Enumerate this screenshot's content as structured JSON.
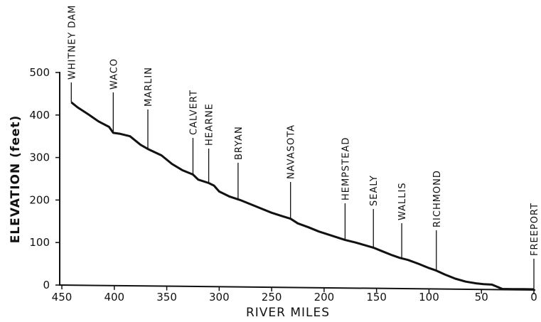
{
  "chart_data": {
    "type": "line",
    "title": "",
    "xlabel": "RIVER MILES",
    "ylabel": "ELEVATION (feet)",
    "xlim": [
      460,
      0
    ],
    "ylim": [
      0,
      500
    ],
    "x_ticks": [
      {
        "value": 450,
        "label": "450"
      },
      {
        "value": 400,
        "label": "400"
      },
      {
        "value": 350,
        "label": "350"
      },
      {
        "value": 300,
        "label": "300"
      },
      {
        "value": 250,
        "label": "250"
      },
      {
        "value": 200,
        "label": "200"
      },
      {
        "value": 150,
        "label": "150"
      },
      {
        "value": 100,
        "label": "100"
      },
      {
        "value": 50,
        "label": "50"
      },
      {
        "value": 0,
        "label": "0"
      }
    ],
    "y_ticks": [
      {
        "value": 0,
        "label": "0"
      },
      {
        "value": 100,
        "label": "100"
      },
      {
        "value": 200,
        "label": "200"
      },
      {
        "value": 300,
        "label": "300"
      },
      {
        "value": 400,
        "label": "400"
      },
      {
        "value": 500,
        "label": "500"
      }
    ],
    "grid": false,
    "series": [
      {
        "x": [
          441,
          435,
          425,
          415,
          405,
          401,
          395,
          385,
          375,
          368,
          355,
          345,
          335,
          325,
          320,
          310,
          305,
          300,
          290,
          280,
          270,
          260,
          250,
          240,
          232,
          225,
          215,
          205,
          195,
          185,
          180,
          170,
          160,
          153,
          145,
          135,
          128,
          120,
          110,
          100,
          93,
          85,
          75,
          65,
          55,
          48,
          40,
          30,
          20,
          10,
          0
        ],
        "y": [
          430,
          418,
          402,
          385,
          372,
          358,
          356,
          350,
          330,
          320,
          305,
          285,
          270,
          260,
          248,
          240,
          234,
          220,
          208,
          200,
          190,
          180,
          170,
          162,
          156,
          145,
          136,
          126,
          118,
          110,
          106,
          100,
          93,
          88,
          80,
          70,
          64,
          59,
          50,
          40,
          34,
          25,
          15,
          8,
          4,
          2,
          1,
          0,
          0,
          0,
          0
        ]
      }
    ],
    "annotations": [
      {
        "label": "WHITNEY DAM",
        "x": 441,
        "y": 430
      },
      {
        "label": "WACO",
        "x": 401,
        "y": 358
      },
      {
        "label": "MARLIN",
        "x": 368,
        "y": 320
      },
      {
        "label": "CALVERT",
        "x": 325,
        "y": 260
      },
      {
        "label": "HEARNE",
        "x": 310,
        "y": 240
      },
      {
        "label": "BRYAN",
        "x": 282,
        "y": 200
      },
      {
        "label": "NAVASOTA",
        "x": 232,
        "y": 156
      },
      {
        "label": "HEMPSTEAD",
        "x": 180,
        "y": 106
      },
      {
        "label": "SEALY",
        "x": 153,
        "y": 88
      },
      {
        "label": "WALLIS",
        "x": 126,
        "y": 63
      },
      {
        "label": "RICHMOND",
        "x": 93,
        "y": 34
      },
      {
        "label": "FREEPORT",
        "x": 0,
        "y": 0
      }
    ]
  }
}
